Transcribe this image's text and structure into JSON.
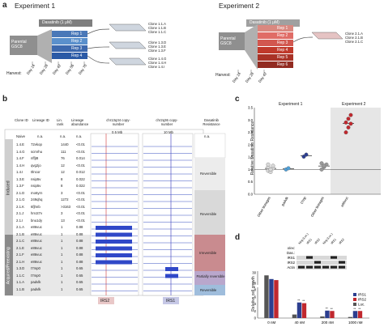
{
  "panel_a": {
    "letter": "a",
    "exp1": {
      "title": "Experiment 1",
      "drug": "Dasatinib (1 μM)",
      "parental": "Parental\nGSC8",
      "harvest": "Harvest:",
      "days": [
        "Day 14",
        "Day 28",
        "Day 42",
        "Day 56",
        "Day 70"
      ],
      "reps": [
        "Rep 1",
        "Rep 2",
        "Rep 3",
        "Rep 4"
      ],
      "clones": [
        "Clone 1.1.A",
        "Clone 1.1.B",
        "Clone 1.1.C",
        "Clone 1.3.D",
        "Clone 1.3.E",
        "Clone 1.3.F",
        "Clone 1.4.G",
        "Clone 1.4.H",
        "Clone 1.4.I"
      ]
    },
    "exp2": {
      "title": "Experiment 2",
      "drug": "Dasatinib (1 μM)",
      "parental": "Parental\nGSC8",
      "harvest": "Harvest:",
      "days": [
        "Day 14",
        "Day 28",
        "Day 42"
      ],
      "reps": [
        "Rep 1",
        "Rep 2",
        "Rep 3",
        "Rep 4",
        "Rep 5",
        "Rep 6"
      ],
      "clones": [
        "Clone 2.1.A",
        "Clone 2.1.B",
        "Clone 2.1.C"
      ]
    }
  },
  "panel_b": {
    "letter": "b",
    "headers": {
      "clone_id": "Clone ID",
      "lineage_id": "Lineage ID",
      "lin_rank": "Lin. rank",
      "lineage_abundance": "Lineage abundance",
      "chr13": "chr13q34 copy-number",
      "chr2": "chr2q36 copy-number",
      "resistance": "Dasatinib Resistance",
      "scale1": "0.5 Mb",
      "scale2": "10 Mb"
    },
    "naive_row": {
      "id": "Naive",
      "lineage": "n.a.",
      "rank": "n.a.",
      "abund": "n.a.",
      "res": "n.a."
    },
    "rows": [
      {
        "id": "1.4.E",
        "lineage": "72vkop",
        "rank": "1440",
        "abund": "<0.01"
      },
      {
        "id": "1.4.G",
        "lineage": "scmrhu",
        "rank": "111",
        "abund": "<0.01"
      },
      {
        "id": "1.4.F",
        "lineage": "nffjt8",
        "rank": "76",
        "abund": "0.014"
      },
      {
        "id": "1.4.H",
        "lineage": "qvg2jo",
        "rank": "12",
        "abund": "<0.01"
      },
      {
        "id": "1.4.I",
        "lineage": "0lncor",
        "rank": "12",
        "abund": "0.012"
      },
      {
        "id": "1.3.E",
        "lineage": "nsip5v",
        "rank": "8",
        "abund": "0.022"
      },
      {
        "id": "1.3.F",
        "lineage": "nsip5v",
        "rank": "8",
        "abund": "0.022"
      },
      {
        "id": "2.1.D",
        "lineage": "mo6yrn",
        "rank": "3",
        "abund": "<0.01"
      },
      {
        "id": "2.1.G",
        "lineage": "249qhq",
        "rank": "1272",
        "abund": "<0.01"
      },
      {
        "id": "2.1.K",
        "lineage": "6fjhnb",
        "rank": ">3163",
        "abund": "<0.01"
      },
      {
        "id": "2.1.J",
        "lineage": "hm1t7v",
        "rank": "3",
        "abund": "<0.01"
      },
      {
        "id": "2.1.I",
        "lineage": "bnu1dy",
        "rank": "13",
        "abund": "<0.01"
      },
      {
        "id": "2.1.A",
        "lineage": "e86vuc",
        "rank": "1",
        "abund": "0.88"
      },
      {
        "id": "2.1.B",
        "lineage": "e86vuc",
        "rank": "1",
        "abund": "0.88"
      },
      {
        "id": "2.1.C",
        "lineage": "e86vuc",
        "rank": "1",
        "abund": "0.88"
      },
      {
        "id": "2.1.E",
        "lineage": "e86vuc",
        "rank": "1",
        "abund": "0.88"
      },
      {
        "id": "2.1.F",
        "lineage": "e86vuc",
        "rank": "1",
        "abund": "0.88"
      },
      {
        "id": "2.1.H",
        "lineage": "e86vuc",
        "rank": "1",
        "abund": "0.88"
      },
      {
        "id": "1.3.D",
        "lineage": "t7mp0",
        "rank": "1",
        "abund": "0.65"
      },
      {
        "id": "1.1.C",
        "lineage": "t7mp0",
        "rank": "1",
        "abund": "0.65"
      },
      {
        "id": "1.1.A",
        "lineage": "padvlk",
        "rank": "1",
        "abund": "0.65"
      },
      {
        "id": "1.1.B",
        "lineage": "padvlk",
        "rank": "1",
        "abund": "0.65"
      }
    ],
    "group_labels": [
      "Induced",
      "Acquired/Preexisting"
    ],
    "resistance_labels": [
      "Reversible",
      "Reversible",
      "Irreversible",
      "Partially reversible",
      "Reversible"
    ],
    "gene_labels": [
      "IRS2",
      "IRS1"
    ]
  },
  "panel_c": {
    "letter": "c",
    "exp1": "Experiment 1",
    "exp2": "Experiment 2",
    "ylabel": "Relative Dasatinib Resistance",
    "yticks": [
      "0.0",
      "0.5",
      "1.0",
      "1.5",
      "2.0",
      "2.5",
      "3.0",
      "3.5"
    ],
    "categories": [
      "Other lineages",
      "padvlk",
      "t7mp",
      "Other lineages",
      "e86vuc"
    ]
  },
  "panel_d": {
    "letter": "d",
    "ylabel": "Relative cell growth",
    "legend": [
      "IRS1",
      "IRS2",
      "Luc."
    ],
    "xlabels": [
      "0 nM",
      "40 nM",
      "200 nM",
      "1000 nM"
    ],
    "yticks": [
      "0",
      "2",
      "4",
      "6",
      "8",
      "28",
      "30"
    ],
    "blot_rows": [
      "o/ex:",
      "Das.:",
      "IRS1",
      "IRS2",
      "Actin"
    ],
    "blot_cols": [
      "Neg (Luc.)",
      "IRS1",
      "IRS2",
      "Neg (Luc.)",
      "IRS1",
      "IRS2"
    ],
    "signif": [
      "**",
      "**",
      "**",
      "**",
      "**",
      "**"
    ]
  },
  "chart_data": {
    "type": "bar",
    "title": "",
    "xlabel": "",
    "ylabel": "Relative cell growth",
    "categories": [
      "0 nM",
      "40 nM",
      "200 nM",
      "1000 nM"
    ],
    "series": [
      {
        "name": "Luc.",
        "values": [
          29.5,
          1.0,
          0.45,
          0.3
        ]
      },
      {
        "name": "IRS1",
        "values": [
          28.8,
          4.4,
          2.1,
          2.0
        ]
      },
      {
        "name": "IRS2",
        "values": [
          28.6,
          4.2,
          2.0,
          2.0
        ]
      }
    ],
    "colors": {
      "Luc.": "#555555",
      "IRS1": "#2c3e8f",
      "IRS2": "#c0282e"
    }
  }
}
